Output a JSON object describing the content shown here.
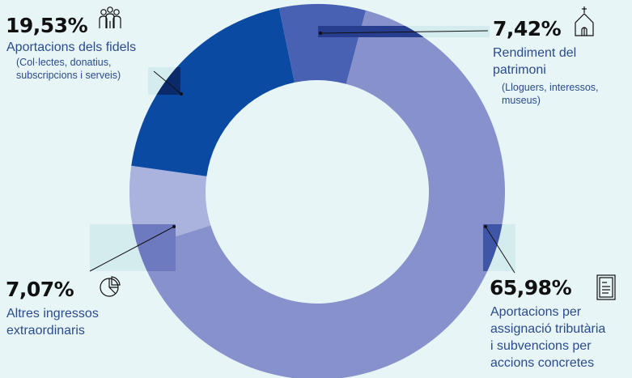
{
  "chart_data": {
    "type": "pie",
    "donut": true,
    "title": "",
    "slices": [
      {
        "key": "aportacions-per-assignacio-tributaria",
        "value": 65.98,
        "percent_label": "65,98%",
        "label_lines": [
          "Aportacions per",
          "assignació tributària",
          "i subvencions per",
          "accions concretes"
        ],
        "sub_lines": [],
        "color": "#8791cc",
        "icon": "document-icon"
      },
      {
        "key": "altres-ingressos-extraordinaris",
        "value": 7.07,
        "percent_label": "7,07%",
        "label_lines": [
          "Altres ingressos",
          "extraordinaris"
        ],
        "sub_lines": [],
        "color": "#aab2de",
        "icon": "pie-chart-icon"
      },
      {
        "key": "aportacions-dels-fidels",
        "value": 19.53,
        "percent_label": "19,53%",
        "label_lines": [
          "Aportacions dels fidels"
        ],
        "sub_lines": [
          "(Col·lectes, donatius,",
          "subscripcions i serveis)"
        ],
        "color": "#0b4aa2",
        "icon": "people-icon"
      },
      {
        "key": "rendiment-del-patrimoni",
        "value": 7.42,
        "percent_label": "7,42%",
        "label_lines": [
          "Rendiment del",
          "patrimoni"
        ],
        "sub_lines": [
          "(Lloguers, interessos,",
          "museus)"
        ],
        "color": "#4861b2",
        "icon": "church-icon"
      }
    ]
  }
}
